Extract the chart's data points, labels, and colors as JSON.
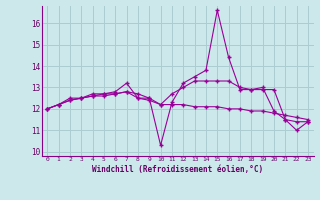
{
  "xlabel": "Windchill (Refroidissement éolien,°C)",
  "ylabel": "",
  "background_color": "#cce8ea",
  "grid_color": "#aaccd0",
  "line_color": "#990099",
  "xlim": [
    -0.5,
    23.5
  ],
  "ylim": [
    9.8,
    16.8
  ],
  "xticks": [
    0,
    1,
    2,
    3,
    4,
    5,
    6,
    7,
    8,
    9,
    10,
    11,
    12,
    13,
    14,
    15,
    16,
    17,
    18,
    19,
    20,
    21,
    22,
    23
  ],
  "yticks": [
    10,
    11,
    12,
    13,
    14,
    15,
    16
  ],
  "series": [
    [
      12.0,
      12.2,
      12.4,
      12.5,
      12.6,
      12.7,
      12.7,
      12.8,
      12.5,
      12.4,
      12.2,
      12.2,
      12.2,
      12.1,
      12.1,
      12.1,
      12.0,
      12.0,
      11.9,
      11.9,
      11.8,
      11.7,
      11.6,
      11.5
    ],
    [
      12.0,
      12.2,
      12.4,
      12.5,
      12.6,
      12.6,
      12.7,
      12.8,
      12.7,
      12.5,
      10.3,
      12.3,
      13.2,
      13.5,
      13.8,
      16.6,
      14.4,
      12.9,
      12.9,
      13.0,
      11.9,
      11.5,
      11.0,
      11.4
    ],
    [
      12.0,
      12.2,
      12.5,
      12.5,
      12.7,
      12.7,
      12.8,
      13.2,
      12.5,
      12.5,
      12.2,
      12.7,
      13.0,
      13.3,
      13.3,
      13.3,
      13.3,
      13.0,
      12.9,
      12.9,
      12.9,
      11.5,
      11.4,
      11.4
    ]
  ]
}
